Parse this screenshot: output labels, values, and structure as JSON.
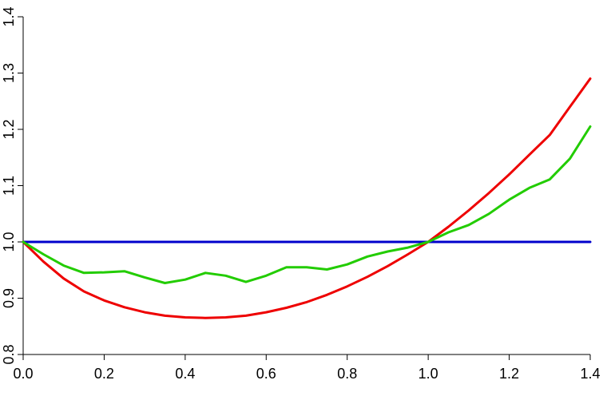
{
  "chart_data": {
    "type": "line",
    "title": "",
    "xlabel": "",
    "ylabel": "",
    "xlim": [
      0.0,
      1.4
    ],
    "ylim": [
      0.8,
      1.4
    ],
    "grid": false,
    "legend": "none",
    "x_ticks": [
      "0.0",
      "0.2",
      "0.4",
      "0.6",
      "0.8",
      "1.0",
      "1.2",
      "1.4"
    ],
    "y_ticks": [
      "0.8",
      "0.9",
      "1.0",
      "1.1",
      "1.2",
      "1.3",
      "1.4"
    ],
    "series": [
      {
        "color": "#0000cc",
        "x": [
          0.0,
          1.4
        ],
        "y": [
          1.0,
          1.0
        ]
      },
      {
        "color": "#ee0000",
        "x": [
          0.0,
          0.05,
          0.1,
          0.15,
          0.2,
          0.25,
          0.3,
          0.35,
          0.4,
          0.45,
          0.5,
          0.55,
          0.6,
          0.65,
          0.7,
          0.75,
          0.8,
          0.85,
          0.9,
          0.95,
          1.0,
          1.05,
          1.1,
          1.15,
          1.2,
          1.25,
          1.3,
          1.35,
          1.4
        ],
        "y": [
          1.0,
          0.965,
          0.935,
          0.912,
          0.896,
          0.884,
          0.875,
          0.869,
          0.866,
          0.865,
          0.866,
          0.869,
          0.875,
          0.883,
          0.893,
          0.906,
          0.921,
          0.938,
          0.957,
          0.978,
          1.0,
          1.027,
          1.056,
          1.087,
          1.12,
          1.155,
          1.19,
          1.24,
          1.29
        ]
      },
      {
        "color": "#22cc00",
        "x": [
          0.0,
          0.05,
          0.1,
          0.15,
          0.2,
          0.25,
          0.3,
          0.35,
          0.4,
          0.45,
          0.5,
          0.55,
          0.6,
          0.65,
          0.7,
          0.75,
          0.8,
          0.85,
          0.9,
          0.95,
          1.0,
          1.05,
          1.1,
          1.15,
          1.2,
          1.25,
          1.3,
          1.35,
          1.4
        ],
        "y": [
          1.0,
          0.978,
          0.958,
          0.945,
          0.946,
          0.948,
          0.937,
          0.927,
          0.933,
          0.945,
          0.94,
          0.929,
          0.94,
          0.955,
          0.955,
          0.951,
          0.96,
          0.974,
          0.983,
          0.99,
          1.0,
          1.017,
          1.03,
          1.05,
          1.075,
          1.096,
          1.111,
          1.148,
          1.205
        ]
      }
    ]
  }
}
